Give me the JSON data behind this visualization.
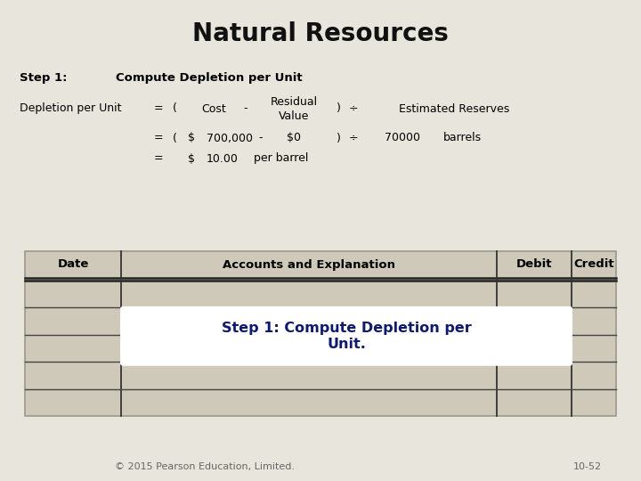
{
  "title": "Natural Resources",
  "bg_color": "#e8e5dc",
  "title_color": "#111111",
  "title_fontsize": 20,
  "step1_label": "Step 1:",
  "step1_heading": "Compute Depletion per Unit",
  "formula_label": "Depletion per Unit",
  "table_header": [
    "Date",
    "Accounts and Explanation",
    "Debit",
    "Credit"
  ],
  "table_bg": "#cec9b8",
  "table_header_color": "#000000",
  "highlight_text_line1": "Step 1: Compute Depletion per",
  "highlight_text_line2": "Unit.",
  "highlight_color": "#0d1a6e",
  "highlight_bg": "#ffffff",
  "footer_left": "© 2015 Pearson Education, Limited.",
  "footer_right": "10-52",
  "footer_color": "#666666",
  "footer_fontsize": 8
}
